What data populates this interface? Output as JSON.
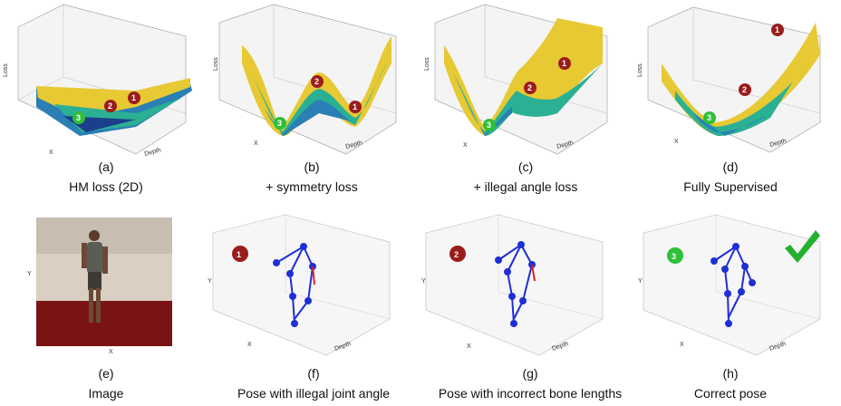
{
  "top_row": [
    {
      "letter": "(a)",
      "caption": "HM loss (2D)",
      "z_label": "Loss",
      "x_label": "X",
      "depth_label": "Depth",
      "markers": [
        "1",
        "2",
        "3"
      ]
    },
    {
      "letter": "(b)",
      "caption": "+ symmetry loss",
      "z_label": "Loss",
      "x_label": "X",
      "depth_label": "Depth",
      "markers": [
        "1",
        "2",
        "3"
      ]
    },
    {
      "letter": "(c)",
      "caption": "+ illegal angle loss",
      "z_label": "Loss",
      "x_label": "X",
      "depth_label": "Depth",
      "markers": [
        "1",
        "2",
        "3"
      ]
    },
    {
      "letter": "(d)",
      "caption": "Fully Supervised",
      "z_label": "Loss",
      "x_label": "X",
      "depth_label": "Depth",
      "markers": [
        "1",
        "2",
        "3"
      ]
    }
  ],
  "bottom_row": [
    {
      "letter": "(e)",
      "caption": "Image",
      "y_label": "Y",
      "x_label": "X"
    },
    {
      "letter": "(f)",
      "caption": "Pose with illegal joint angle",
      "y_label": "Y",
      "x_label": "X",
      "depth_label": "Depth",
      "badge": "1"
    },
    {
      "letter": "(g)",
      "caption": "Pose with incorrect bone lengths",
      "y_label": "Y",
      "x_label": "X",
      "depth_label": "Depth",
      "badge": "2"
    },
    {
      "letter": "(h)",
      "caption": "Correct pose",
      "y_label": "Y",
      "x_label": "X",
      "depth_label": "Depth",
      "badge": "3"
    }
  ],
  "colors": {
    "marker_red": "#9b1c1c",
    "marker_green": "#2fbf3a",
    "skeleton_blue": "#1f2fd6",
    "skeleton_error": "#e0202a",
    "checkmark": "#22b02e",
    "floor_red": "#7a1414"
  }
}
